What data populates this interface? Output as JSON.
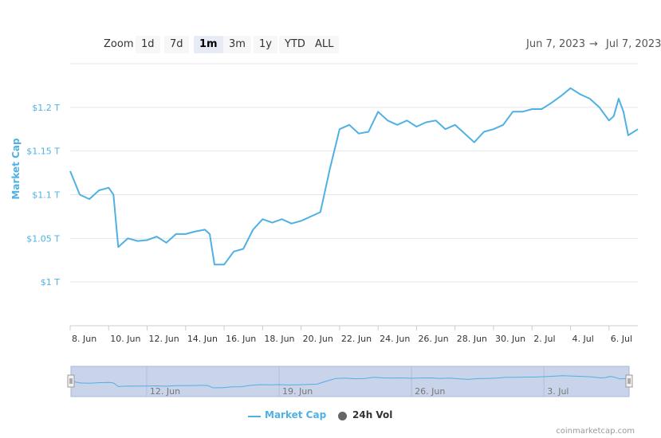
{
  "toolbar": {
    "zoom_label": "Zoom",
    "buttons": [
      "1d",
      "7d",
      "1m",
      "3m",
      "1y",
      "YTD",
      "ALL"
    ],
    "active": "1m"
  },
  "range": {
    "from": "Jun 7, 2023",
    "arrow": "→",
    "to": "Jul 7, 2023"
  },
  "colors": {
    "line": "#4fb1e3",
    "axis_text": "#4fb1e3",
    "grid": "#e6e6e6",
    "navigator_fill": "#c9d3ea",
    "vol_dot": "#666666"
  },
  "chart_data": {
    "type": "line",
    "ylabel": "Market Cap",
    "ylim": [
      0.95,
      1.25
    ],
    "yticks": [
      1.0,
      1.05,
      1.1,
      1.15,
      1.2
    ],
    "ytick_labels": [
      "$1 T",
      "$1.05 T",
      "$1.1 T",
      "$1.15 T",
      "$1.2 T"
    ],
    "xlim": [
      "2023-06-08T00:00",
      "2023-07-07T12:00"
    ],
    "xtick_labels": [
      "8. Jun",
      "10. Jun",
      "12. Jun",
      "14. Jun",
      "16. Jun",
      "18. Jun",
      "20. Jun",
      "22. Jun",
      "24. Jun",
      "26. Jun",
      "28. Jun",
      "30. Jun",
      "2. Jul",
      "4. Jul",
      "6. Jul"
    ],
    "xtick_dates": [
      "2023-06-08",
      "2023-06-10",
      "2023-06-12",
      "2023-06-14",
      "2023-06-16",
      "2023-06-18",
      "2023-06-20",
      "2023-06-22",
      "2023-06-24",
      "2023-06-26",
      "2023-06-28",
      "2023-06-30",
      "2023-07-02",
      "2023-07-04",
      "2023-07-06"
    ],
    "grid": true,
    "series": [
      {
        "name": "Market Cap",
        "x": [
          "2023-06-08T00:00",
          "2023-06-08T12:00",
          "2023-06-09T00:00",
          "2023-06-09T12:00",
          "2023-06-10T00:00",
          "2023-06-10T06:00",
          "2023-06-10T12:00",
          "2023-06-11T00:00",
          "2023-06-11T12:00",
          "2023-06-12T00:00",
          "2023-06-12T12:00",
          "2023-06-13T00:00",
          "2023-06-13T12:00",
          "2023-06-14T00:00",
          "2023-06-14T12:00",
          "2023-06-15T00:00",
          "2023-06-15T06:00",
          "2023-06-15T12:00",
          "2023-06-16T00:00",
          "2023-06-16T12:00",
          "2023-06-17T00:00",
          "2023-06-17T12:00",
          "2023-06-18T00:00",
          "2023-06-18T12:00",
          "2023-06-19T00:00",
          "2023-06-19T12:00",
          "2023-06-20T00:00",
          "2023-06-20T12:00",
          "2023-06-21T00:00",
          "2023-06-21T12:00",
          "2023-06-22T00:00",
          "2023-06-22T12:00",
          "2023-06-23T00:00",
          "2023-06-23T12:00",
          "2023-06-24T00:00",
          "2023-06-24T12:00",
          "2023-06-25T00:00",
          "2023-06-25T12:00",
          "2023-06-26T00:00",
          "2023-06-26T12:00",
          "2023-06-27T00:00",
          "2023-06-27T12:00",
          "2023-06-28T00:00",
          "2023-06-28T12:00",
          "2023-06-29T00:00",
          "2023-06-29T12:00",
          "2023-06-30T00:00",
          "2023-06-30T12:00",
          "2023-07-01T00:00",
          "2023-07-01T12:00",
          "2023-07-02T00:00",
          "2023-07-02T12:00",
          "2023-07-03T00:00",
          "2023-07-03T12:00",
          "2023-07-04T00:00",
          "2023-07-04T12:00",
          "2023-07-05T00:00",
          "2023-07-05T12:00",
          "2023-07-06T00:00",
          "2023-07-06T06:00",
          "2023-07-06T12:00",
          "2023-07-06T18:00",
          "2023-07-07T00:00",
          "2023-07-07T12:00"
        ],
        "y": [
          1.127,
          1.1,
          1.095,
          1.105,
          1.108,
          1.1,
          1.04,
          1.05,
          1.047,
          1.048,
          1.052,
          1.045,
          1.055,
          1.055,
          1.058,
          1.06,
          1.055,
          1.02,
          1.02,
          1.035,
          1.038,
          1.06,
          1.072,
          1.068,
          1.072,
          1.067,
          1.07,
          1.075,
          1.08,
          1.13,
          1.175,
          1.18,
          1.17,
          1.172,
          1.195,
          1.185,
          1.18,
          1.185,
          1.178,
          1.183,
          1.185,
          1.175,
          1.18,
          1.17,
          1.16,
          1.172,
          1.175,
          1.18,
          1.195,
          1.195,
          1.198,
          1.198,
          1.205,
          1.213,
          1.222,
          1.215,
          1.21,
          1.2,
          1.185,
          1.19,
          1.21,
          1.195,
          1.168,
          1.175
        ]
      }
    ]
  },
  "navigator": {
    "labels": [
      "12. Jun",
      "19. Jun",
      "26. Jun",
      "3. Jul"
    ],
    "label_dates": [
      "2023-06-12",
      "2023-06-19",
      "2023-06-26",
      "2023-07-03"
    ]
  },
  "legend": {
    "items": [
      "Market Cap",
      "24h Vol"
    ]
  },
  "credit": "coinmarketcap.com"
}
